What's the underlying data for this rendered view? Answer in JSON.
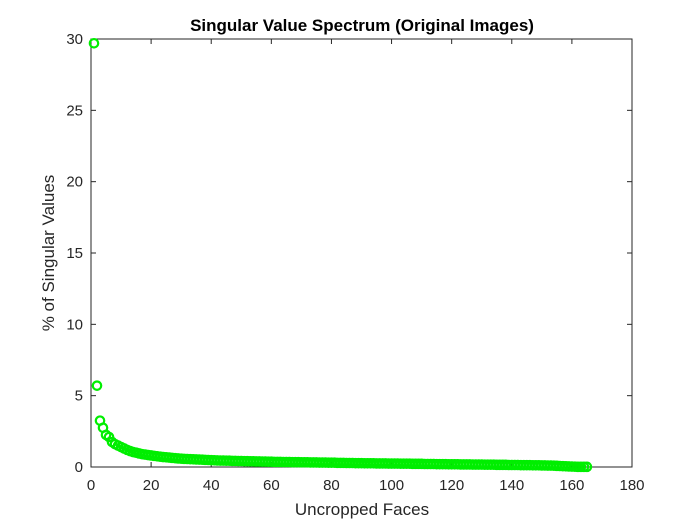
{
  "chart_data": {
    "type": "scatter",
    "title": "Singular Value Spectrum (Original Images)",
    "xlabel": "Uncropped Faces",
    "ylabel": "% of Singular Values",
    "xlim": [
      0,
      180
    ],
    "ylim": [
      0,
      30
    ],
    "xticks": [
      0,
      20,
      40,
      60,
      80,
      100,
      120,
      140,
      160,
      180
    ],
    "yticks": [
      0,
      5,
      10,
      15,
      20,
      25,
      30
    ],
    "grid": false,
    "legend": "none",
    "marker": "circle-open",
    "color": "#00ee00",
    "series": [
      {
        "x": [
          1,
          2,
          3,
          4,
          5,
          6,
          7,
          8,
          9,
          10,
          11,
          12,
          13,
          14,
          15,
          16,
          17,
          18,
          19,
          20,
          21,
          22,
          23,
          24,
          25,
          26,
          27,
          28,
          29,
          30,
          31,
          32,
          33,
          34,
          35,
          36,
          37,
          38,
          39,
          40,
          41,
          42,
          43,
          44,
          45,
          46,
          47,
          48,
          49,
          50,
          51,
          52,
          53,
          54,
          55,
          56,
          57,
          58,
          59,
          60,
          61,
          62,
          63,
          64,
          65,
          66,
          67,
          68,
          69,
          70,
          71,
          72,
          73,
          74,
          75,
          76,
          77,
          78,
          79,
          80,
          81,
          82,
          83,
          84,
          85,
          86,
          87,
          88,
          89,
          90,
          91,
          92,
          93,
          94,
          95,
          96,
          97,
          98,
          99,
          100,
          101,
          102,
          103,
          104,
          105,
          106,
          107,
          108,
          109,
          110,
          111,
          112,
          113,
          114,
          115,
          116,
          117,
          118,
          119,
          120,
          121,
          122,
          123,
          124,
          125,
          126,
          127,
          128,
          129,
          130,
          131,
          132,
          133,
          134,
          135,
          136,
          137,
          138,
          139,
          140,
          141,
          142,
          143,
          144,
          145,
          146,
          147,
          148,
          149,
          150,
          151,
          152,
          153,
          154,
          155,
          156,
          157,
          158,
          159,
          160,
          161,
          162,
          163,
          164,
          165
        ],
        "values": [
          29.7,
          5.7,
          3.25,
          2.75,
          2.25,
          2.1,
          1.75,
          1.6,
          1.5,
          1.4,
          1.3,
          1.2,
          1.12,
          1.05,
          1.0,
          0.95,
          0.9,
          0.87,
          0.84,
          0.81,
          0.78,
          0.75,
          0.72,
          0.7,
          0.68,
          0.66,
          0.64,
          0.62,
          0.6,
          0.58,
          0.57,
          0.56,
          0.55,
          0.54,
          0.53,
          0.52,
          0.51,
          0.5,
          0.49,
          0.48,
          0.47,
          0.46,
          0.45,
          0.45,
          0.44,
          0.44,
          0.43,
          0.43,
          0.42,
          0.42,
          0.41,
          0.41,
          0.4,
          0.4,
          0.39,
          0.39,
          0.38,
          0.38,
          0.37,
          0.37,
          0.36,
          0.36,
          0.36,
          0.35,
          0.35,
          0.35,
          0.34,
          0.34,
          0.34,
          0.33,
          0.33,
          0.33,
          0.32,
          0.32,
          0.32,
          0.31,
          0.31,
          0.31,
          0.3,
          0.3,
          0.3,
          0.29,
          0.29,
          0.29,
          0.28,
          0.28,
          0.28,
          0.27,
          0.27,
          0.27,
          0.26,
          0.26,
          0.26,
          0.26,
          0.25,
          0.25,
          0.25,
          0.25,
          0.24,
          0.24,
          0.24,
          0.24,
          0.23,
          0.23,
          0.23,
          0.23,
          0.22,
          0.22,
          0.22,
          0.22,
          0.21,
          0.21,
          0.21,
          0.21,
          0.2,
          0.2,
          0.2,
          0.2,
          0.19,
          0.19,
          0.19,
          0.19,
          0.18,
          0.18,
          0.18,
          0.18,
          0.17,
          0.17,
          0.17,
          0.17,
          0.16,
          0.16,
          0.16,
          0.16,
          0.15,
          0.15,
          0.15,
          0.15,
          0.14,
          0.14,
          0.14,
          0.14,
          0.13,
          0.13,
          0.13,
          0.13,
          0.12,
          0.12,
          0.12,
          0.11,
          0.11,
          0.1,
          0.1,
          0.09,
          0.08,
          0.07,
          0.06,
          0.05,
          0.04,
          0.03,
          0.02,
          0.01,
          0.01,
          0.01,
          0.01
        ]
      }
    ]
  }
}
